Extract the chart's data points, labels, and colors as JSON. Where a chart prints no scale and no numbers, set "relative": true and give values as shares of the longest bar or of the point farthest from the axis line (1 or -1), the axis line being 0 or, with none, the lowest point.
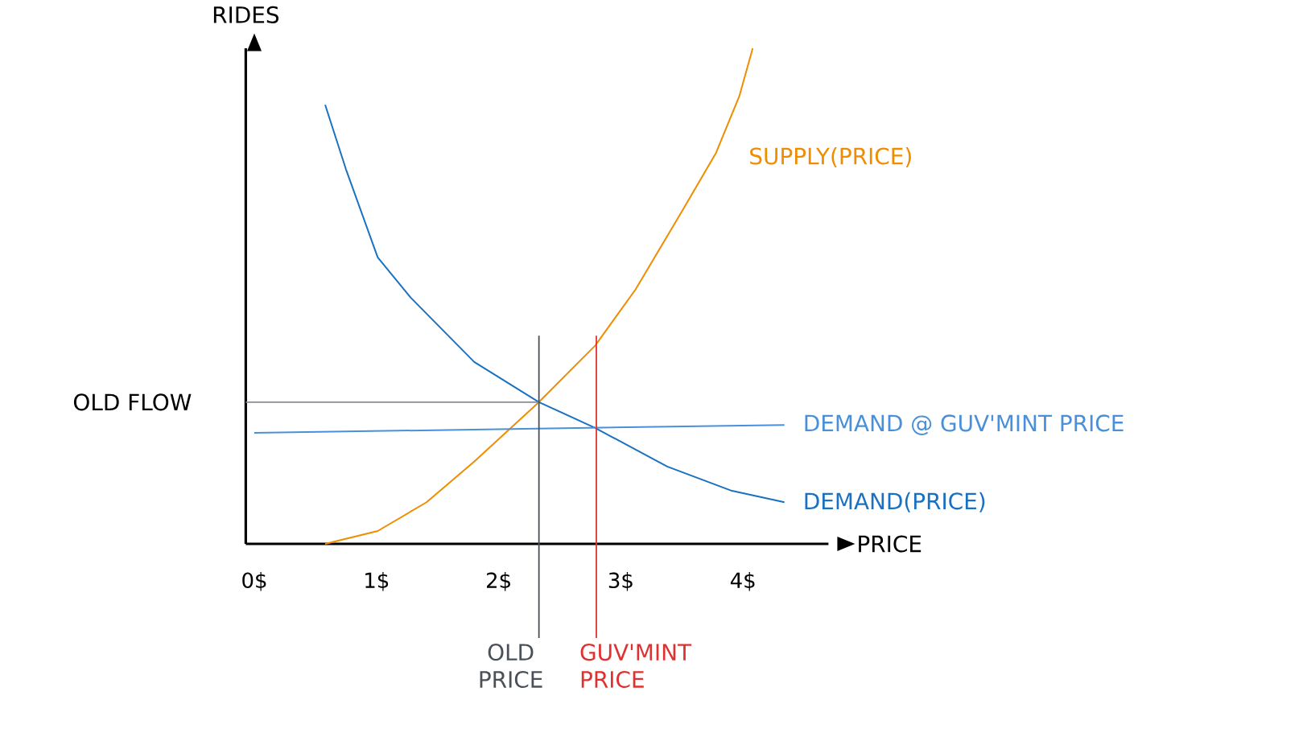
{
  "chart_data": {
    "type": "line",
    "relative": true,
    "xlabel": "PRICE",
    "ylabel": "RIDES",
    "xlim": [
      -0.07,
      4.7
    ],
    "xticks": [
      {
        "value": 0,
        "label": "0$"
      },
      {
        "value": 1,
        "label": "1$"
      },
      {
        "value": 2,
        "label": "2$"
      },
      {
        "value": 3,
        "label": "3$"
      },
      {
        "value": 4,
        "label": "4$"
      }
    ],
    "grid": false,
    "series": [
      {
        "name": "SUPPLY(PRICE)",
        "color": "#f08c00",
        "x": [
          0.58,
          1.01,
          1.41,
          1.8,
          2.33,
          2.79,
          3.12,
          3.51,
          3.78,
          3.97,
          4.08
        ],
        "values": [
          0,
          0.026,
          0.084,
          0.166,
          0.286,
          0.4,
          0.513,
          0.675,
          0.789,
          0.903,
          1.0
        ]
      },
      {
        "name": "DEMAND(PRICE)",
        "color": "#1971c2",
        "x": [
          0.58,
          0.75,
          1.01,
          1.28,
          1.8,
          2.33,
          2.79,
          3.38,
          3.91,
          4.34
        ],
        "values": [
          0.886,
          0.756,
          0.578,
          0.497,
          0.367,
          0.286,
          0.234,
          0.156,
          0.107,
          0.084
        ]
      },
      {
        "name": "DEMAND @ GUV'MINT PRICE",
        "color": "#4a90d9",
        "x": [
          0,
          4.34
        ],
        "values": [
          0.224,
          0.24
        ]
      }
    ],
    "ref_lines": [
      {
        "axis": "y",
        "value": 0.286,
        "label": "OLD FLOW",
        "color": "#868e96"
      },
      {
        "axis": "x",
        "value": 2.33,
        "label": "OLD PRICE",
        "color": "#495057"
      },
      {
        "axis": "x",
        "value": 2.8,
        "label": "GUV'MINT PRICE",
        "color": "#e03131"
      }
    ]
  }
}
